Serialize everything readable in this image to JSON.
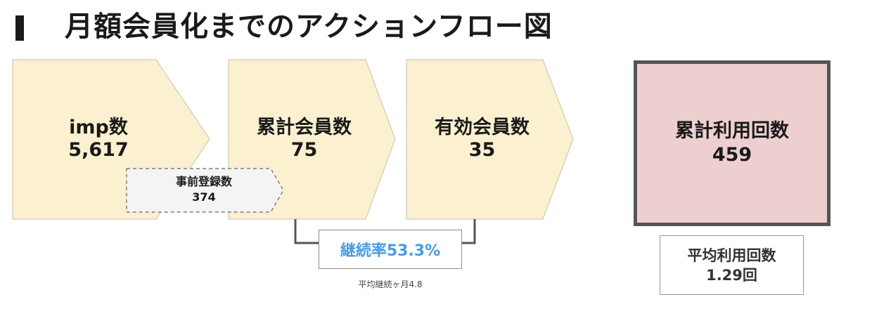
{
  "page": {
    "title": "月額会員化までのアクションフロー図"
  },
  "stages": [
    {
      "label": "imp数",
      "value": "5,617"
    },
    {
      "label": "累計会員数",
      "value": "75"
    },
    {
      "label": "有効会員数",
      "value": "35"
    }
  ],
  "pre_registration": {
    "label": "事前登録数",
    "value": "374"
  },
  "retention": {
    "label": "継続率53.3%",
    "note": "平均継続ヶ月4.8"
  },
  "usage_total": {
    "label": "累計利用回数",
    "value": "459"
  },
  "usage_average": {
    "label": "平均利用回数",
    "value": "1.29回"
  },
  "colors": {
    "stage_fill": "#fbf0cf",
    "stage_stroke": "#c9c2a5",
    "connector": "#555555",
    "retention_text": "#4a9be0",
    "usage_fill": "#eecfcf",
    "usage_border": "#555555",
    "sub_box_fill": "#f4f4f4"
  }
}
